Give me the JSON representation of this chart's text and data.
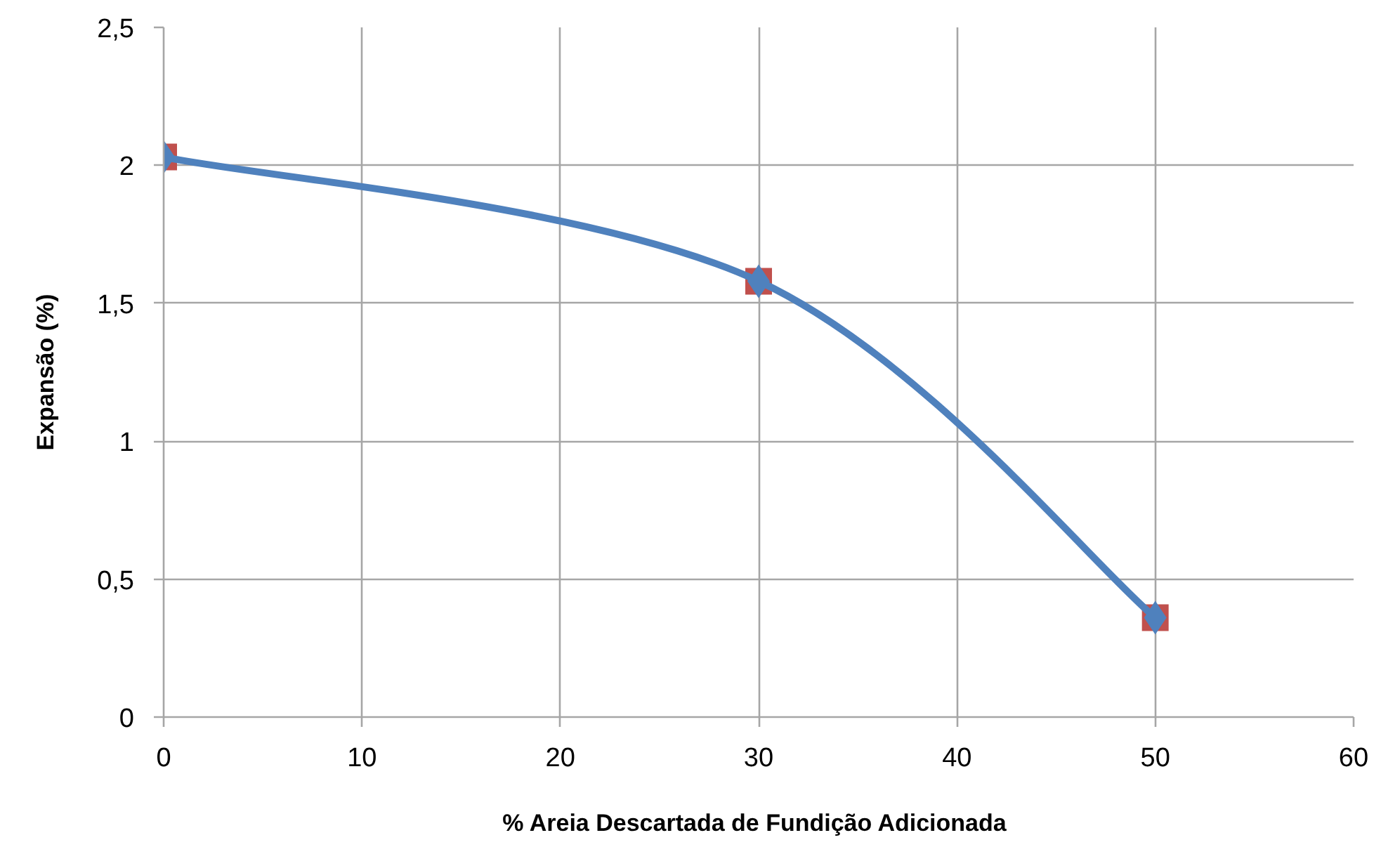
{
  "chart_data": {
    "type": "line",
    "xlabel": "% Areia  Descartada de Fundição Adicionada",
    "ylabel": "Expansão (%)",
    "x": [
      0,
      30,
      50
    ],
    "series": [
      {
        "type": "scatter",
        "color": "#c0504d",
        "marker": "square",
        "values": [
          2.03,
          1.58,
          0.36
        ]
      },
      {
        "color": "#4f81bd",
        "marker": "diamond",
        "values": [
          2.03,
          1.58,
          0.36
        ]
      }
    ],
    "xlim": [
      0,
      60
    ],
    "ylim": [
      0,
      2.5
    ],
    "xticks": [
      0,
      10,
      20,
      30,
      40,
      50,
      60
    ],
    "yticks": [
      0,
      {
        "value": 0.5,
        "label": "0,5"
      },
      1,
      {
        "value": 1.5,
        "label": "1,5"
      },
      2,
      {
        "value": 2.5,
        "label": "2,5"
      }
    ],
    "grid": true
  }
}
